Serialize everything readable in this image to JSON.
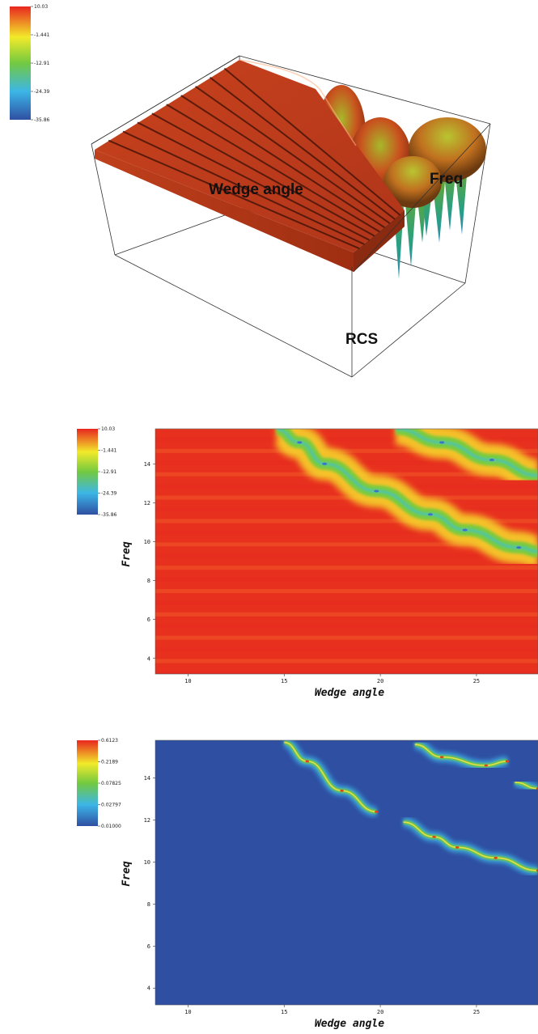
{
  "colors": {
    "rcs_ramp": [
      "#2f4fa2",
      "#3cb6e6",
      "#73c940",
      "#f2ea2a",
      "#e8261f"
    ],
    "bounding_box": "#333333"
  },
  "chart_data": [
    {
      "type": "surface",
      "labels": {
        "x": "Wedge angle",
        "y": "Freq",
        "z": "RCS"
      },
      "colorbar": {
        "ticks": [
          "10.03",
          "-1.441",
          "-12.91",
          "-24.39",
          "-35.86"
        ],
        "range": [
          -35.86,
          10.03
        ]
      },
      "ridges": 9
    },
    {
      "type": "heatmap",
      "xlabel": "Wedge angle",
      "ylabel": "Freq",
      "x_ticks": [
        "10",
        "15",
        "20",
        "25"
      ],
      "y_ticks": [
        "4",
        "6",
        "8",
        "10",
        "12",
        "14"
      ],
      "xlim": [
        8.3,
        28.2
      ],
      "ylim": [
        3.2,
        15.8
      ],
      "colorbar": {
        "ticks": [
          "10.03",
          "-1.441",
          "-12.91",
          "-24.39",
          "-35.86"
        ],
        "range": [
          -35.86,
          10.03
        ]
      },
      "nulls": [
        {
          "points": [
            [
              14.6,
              15.8
            ],
            [
              15.8,
              15.1
            ],
            [
              17.1,
              14.0
            ],
            [
              19.8,
              12.6
            ],
            [
              22.6,
              11.4
            ],
            [
              24.4,
              10.6
            ],
            [
              27.2,
              9.7
            ],
            [
              28.2,
              9.5
            ]
          ]
        },
        {
          "points": [
            [
              20.8,
              15.8
            ],
            [
              23.2,
              15.1
            ],
            [
              25.8,
              14.2
            ],
            [
              28.2,
              13.4
            ]
          ]
        }
      ]
    },
    {
      "type": "heatmap",
      "xlabel": "Wedge angle",
      "ylabel": "Freq",
      "x_ticks": [
        "10",
        "15",
        "20",
        "25"
      ],
      "y_ticks": [
        "4",
        "6",
        "8",
        "10",
        "12",
        "14"
      ],
      "xlim": [
        8.3,
        28.2
      ],
      "ylim": [
        3.2,
        15.8
      ],
      "colorbar": {
        "ticks": [
          "0.6123",
          "0.2189",
          "0.07825",
          "0.02797",
          "0.01000"
        ],
        "range": [
          0.01,
          0.6123
        ],
        "scale": "log"
      },
      "bands": [
        {
          "points": [
            [
              15.0,
              15.7
            ],
            [
              16.2,
              14.8
            ],
            [
              18.0,
              13.4
            ],
            [
              19.8,
              12.4
            ]
          ]
        },
        {
          "points": [
            [
              21.2,
              11.9
            ],
            [
              22.8,
              11.2
            ],
            [
              24.0,
              10.7
            ],
            [
              26.0,
              10.2
            ],
            [
              28.2,
              9.6
            ]
          ]
        },
        {
          "points": [
            [
              21.8,
              15.6
            ],
            [
              23.2,
              15.0
            ],
            [
              25.5,
              14.6
            ],
            [
              26.6,
              14.8
            ]
          ]
        },
        {
          "points": [
            [
              27.0,
              13.8
            ],
            [
              28.2,
              13.5
            ]
          ]
        }
      ]
    }
  ]
}
